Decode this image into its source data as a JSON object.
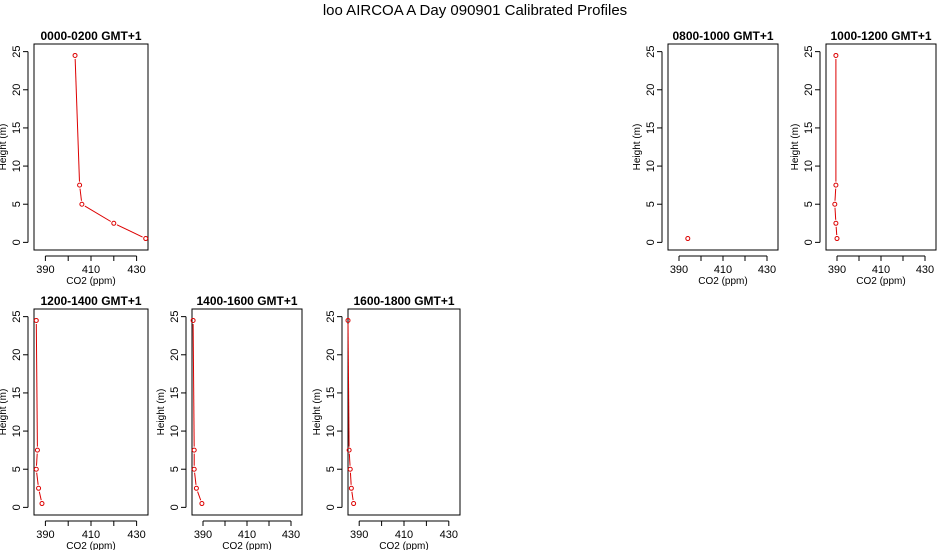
{
  "title": "loo AIRCOA A  Day 090901  Calibrated Profiles",
  "series_color": "#dd0000",
  "chart_data": [
    {
      "type": "line",
      "title": "0000-0200 GMT+1",
      "xlabel": "CO2 (ppm)",
      "ylabel": "Height (m)",
      "xlim": [
        385,
        435
      ],
      "ylim": [
        -1,
        26
      ],
      "xticks": [
        "390",
        "410",
        "430"
      ],
      "yticks": [
        "0",
        "5",
        "10",
        "15",
        "20",
        "25"
      ],
      "points": [
        {
          "x": 403,
          "y": 24.5
        },
        {
          "x": 405,
          "y": 7.5
        },
        {
          "x": 406,
          "y": 5
        },
        {
          "x": 420,
          "y": 2.5
        },
        {
          "x": 434,
          "y": 0.5
        }
      ]
    },
    {
      "type": "scatter",
      "title": "0800-1000 GMT+1",
      "xlabel": "CO2 (ppm)",
      "ylabel": "Height (m)",
      "xlim": [
        385,
        435
      ],
      "ylim": [
        -1,
        26
      ],
      "xticks": [
        "390",
        "410",
        "430"
      ],
      "yticks": [
        "0",
        "5",
        "10",
        "15",
        "20",
        "25"
      ],
      "points": [
        {
          "x": 394,
          "y": 0.5
        }
      ]
    },
    {
      "type": "line",
      "title": "1000-1200 GMT+1",
      "xlabel": "CO2 (ppm)",
      "ylabel": "Height (m)",
      "xlim": [
        385,
        435
      ],
      "ylim": [
        -1,
        26
      ],
      "xticks": [
        "390",
        "410",
        "430"
      ],
      "yticks": [
        "0",
        "5",
        "10",
        "15",
        "20",
        "25"
      ],
      "points": [
        {
          "x": 389.5,
          "y": 24.5
        },
        {
          "x": 389.5,
          "y": 7.5
        },
        {
          "x": 389,
          "y": 5
        },
        {
          "x": 389.5,
          "y": 2.5
        },
        {
          "x": 390,
          "y": 0.5
        }
      ]
    },
    {
      "type": "line",
      "title": "1200-1400 GMT+1",
      "xlabel": "CO2 (ppm)",
      "ylabel": "Height (m)",
      "xlim": [
        385,
        435
      ],
      "ylim": [
        -1,
        26
      ],
      "xticks": [
        "390",
        "410",
        "430"
      ],
      "yticks": [
        "0",
        "5",
        "10",
        "15",
        "20",
        "25"
      ],
      "points": [
        {
          "x": 386,
          "y": 24.5
        },
        {
          "x": 386.5,
          "y": 7.5
        },
        {
          "x": 386,
          "y": 5
        },
        {
          "x": 387,
          "y": 2.5
        },
        {
          "x": 388.5,
          "y": 0.5
        }
      ]
    },
    {
      "type": "line",
      "title": "1400-1600 GMT+1",
      "xlabel": "CO2 (ppm)",
      "ylabel": "Height (m)",
      "xlim": [
        385,
        435
      ],
      "ylim": [
        -1,
        26
      ],
      "xticks": [
        "390",
        "410",
        "430"
      ],
      "yticks": [
        "0",
        "5",
        "10",
        "15",
        "20",
        "25"
      ],
      "points": [
        {
          "x": 385.5,
          "y": 24.5
        },
        {
          "x": 386,
          "y": 7.5
        },
        {
          "x": 386,
          "y": 5
        },
        {
          "x": 387,
          "y": 2.5
        },
        {
          "x": 389.5,
          "y": 0.5
        }
      ]
    },
    {
      "type": "line",
      "title": "1600-1800 GMT+1",
      "xlabel": "CO2 (ppm)",
      "ylabel": "Height (m)",
      "xlim": [
        385,
        435
      ],
      "ylim": [
        -1,
        26
      ],
      "xticks": [
        "390",
        "410",
        "430"
      ],
      "yticks": [
        "0",
        "5",
        "10",
        "15",
        "20",
        "25"
      ],
      "points": [
        {
          "x": 385,
          "y": 24.5
        },
        {
          "x": 385.5,
          "y": 7.5
        },
        {
          "x": 386,
          "y": 5
        },
        {
          "x": 386.5,
          "y": 2.5
        },
        {
          "x": 387.5,
          "y": 0.5
        }
      ]
    }
  ]
}
